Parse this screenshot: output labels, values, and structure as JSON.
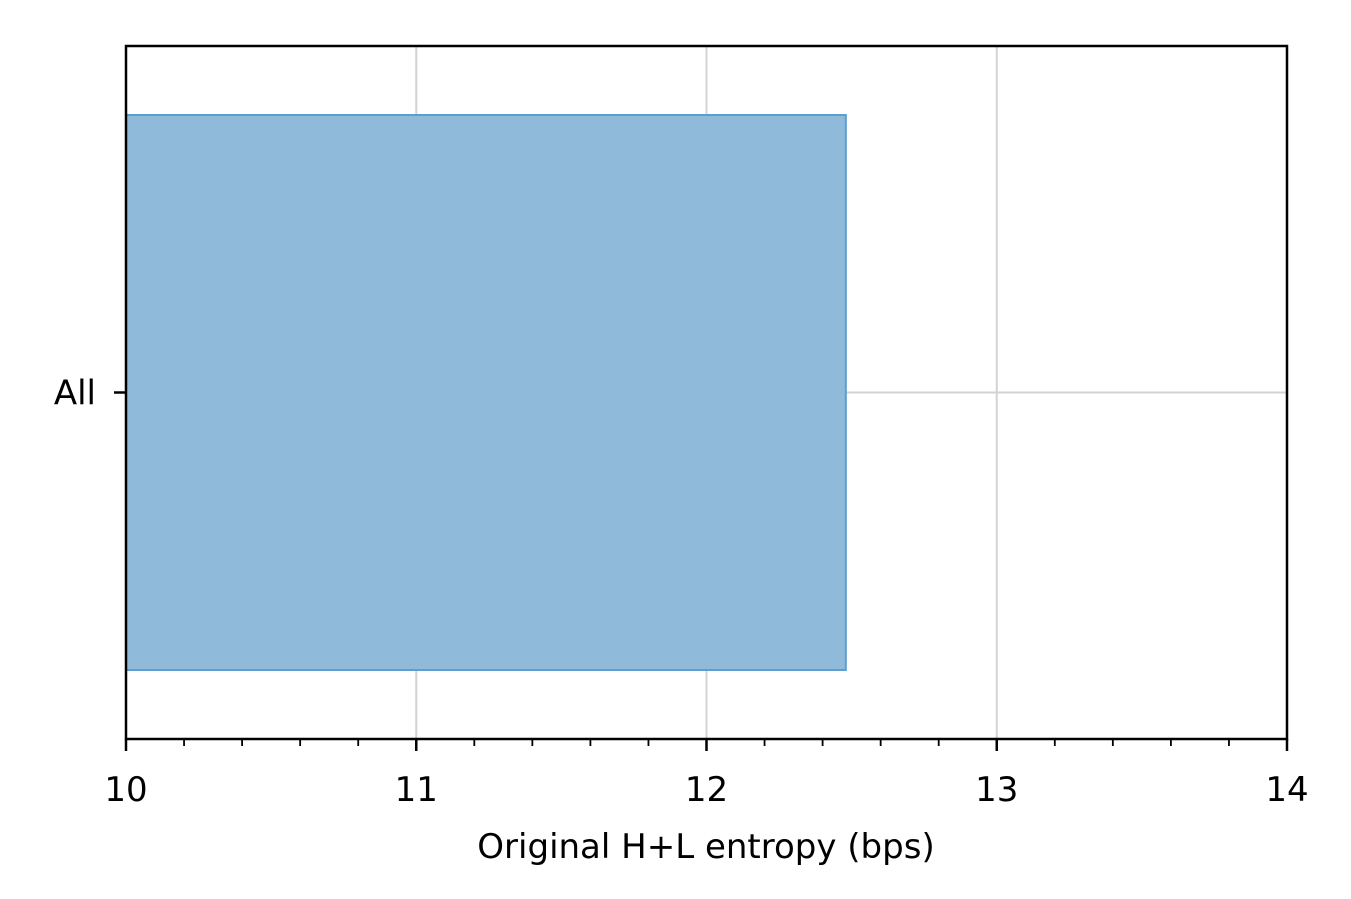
{
  "chart_data": {
    "type": "bar",
    "orientation": "horizontal",
    "categories": [
      "All"
    ],
    "values": [
      12.48
    ],
    "title": "",
    "xlabel": "Original H+L entropy (bps)",
    "ylabel": "",
    "xlim": [
      10,
      14
    ],
    "xticks": [
      10,
      11,
      12,
      13,
      14
    ],
    "xtick_labels": [
      "10",
      "11",
      "12",
      "13",
      "14"
    ],
    "x_minor_tick_step": 0.2,
    "grid": true,
    "legend": "none",
    "colors": {
      "bar_fill": "#90bad9",
      "bar_edge": "#5a9fd0",
      "grid": "#d3d3d3",
      "axes": "#000000"
    }
  }
}
